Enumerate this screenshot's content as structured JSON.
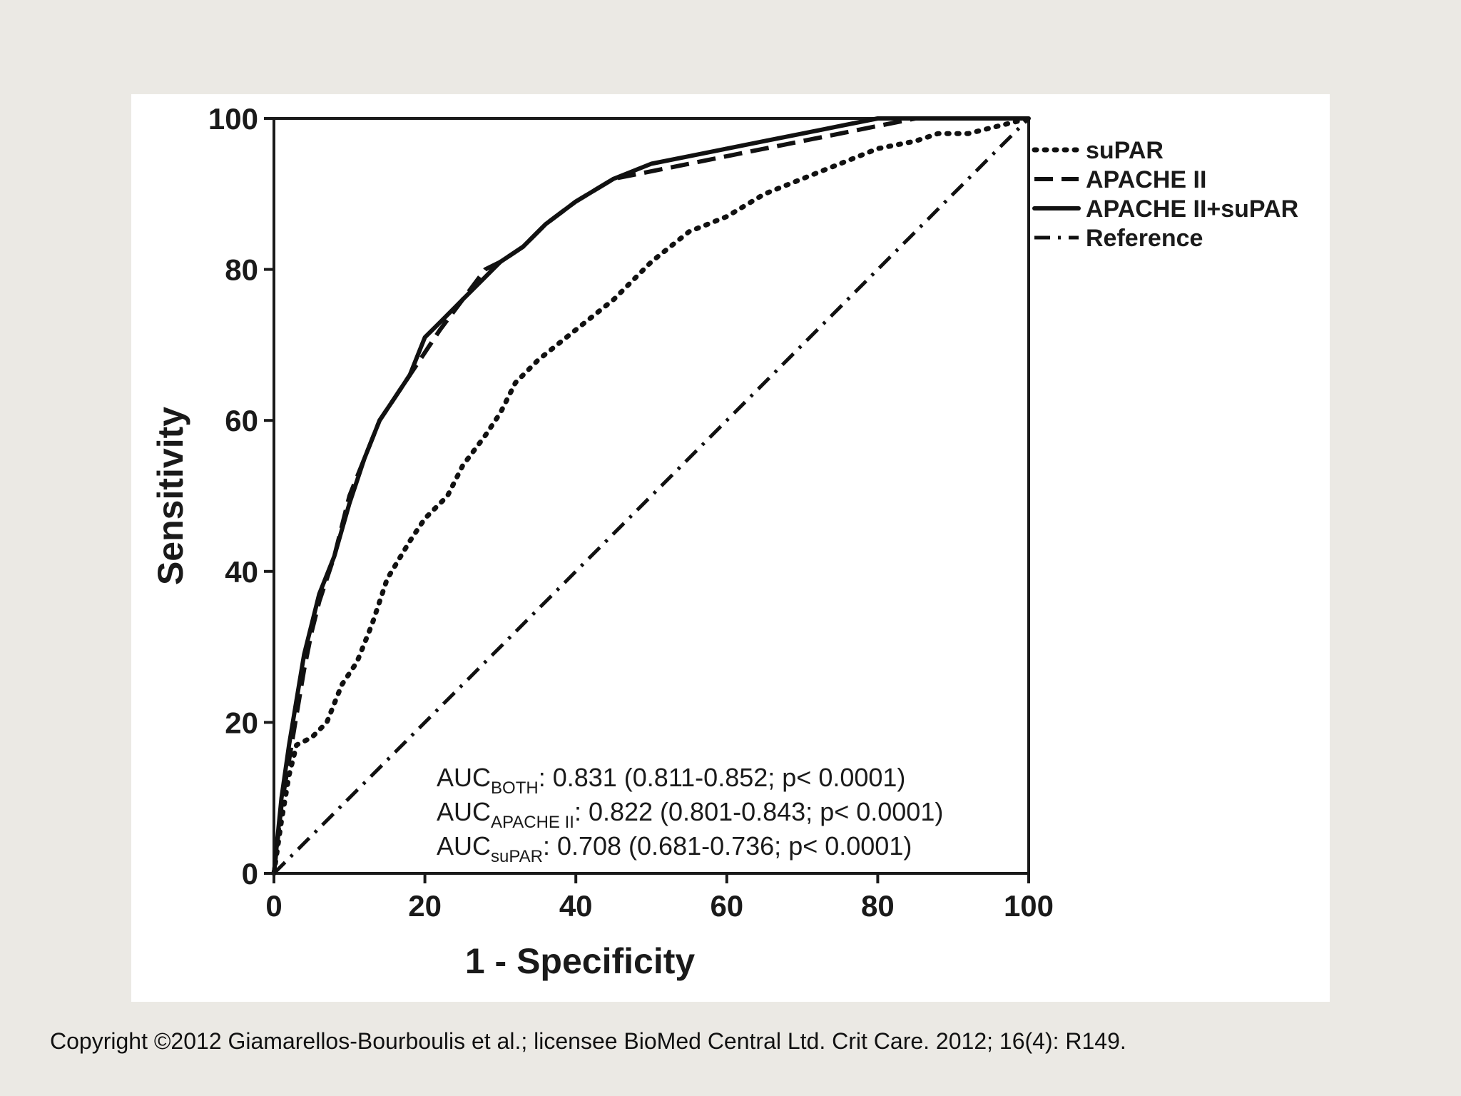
{
  "footer": {
    "copyright": "Copyright ©2012 Giamarellos-Bourboulis et al.; licensee BioMed Central Ltd. Crit Care. 2012; 16(4): R149."
  },
  "chart_data": {
    "type": "line",
    "title": "",
    "xlabel": "1 - Specificity",
    "ylabel": "Sensitivity",
    "xlim": [
      0,
      100
    ],
    "ylim": [
      0,
      100
    ],
    "xticks": [
      "0",
      "20",
      "40",
      "60",
      "80",
      "100"
    ],
    "yticks": [
      "0",
      "20",
      "40",
      "60",
      "80",
      "100"
    ],
    "grid": false,
    "legend_position": "outside-right-top",
    "series": [
      {
        "name": "suPAR",
        "dash": "dotted",
        "x": [
          0,
          1,
          2,
          3,
          5,
          7,
          9,
          11,
          13,
          15,
          18,
          20,
          23,
          25,
          28,
          30,
          32,
          35,
          40,
          45,
          50,
          55,
          60,
          65,
          70,
          75,
          80,
          85,
          88,
          92,
          96,
          100
        ],
        "y": [
          0,
          7,
          13,
          17,
          18,
          20,
          25,
          28,
          33,
          39,
          44,
          47,
          50,
          54,
          58,
          61,
          65,
          68,
          72,
          76,
          81,
          85,
          87,
          90,
          92,
          94,
          96,
          97,
          98,
          98,
          99,
          100
        ]
      },
      {
        "name": "APACHE II",
        "dash": "dashed",
        "x": [
          0,
          1,
          2,
          3,
          4,
          5,
          6,
          8,
          10,
          12,
          14,
          16,
          18,
          20,
          22,
          25,
          28,
          30,
          33,
          36,
          40,
          45,
          50,
          55,
          60,
          65,
          70,
          75,
          80,
          85,
          90,
          100
        ],
        "y": [
          0,
          9,
          15,
          21,
          27,
          32,
          36,
          42,
          50,
          55,
          60,
          63,
          66,
          69,
          72,
          76,
          80,
          81,
          83,
          86,
          89,
          92,
          93,
          94,
          95,
          96,
          97,
          98,
          99,
          100,
          100,
          100
        ]
      },
      {
        "name": "APACHE II+suPAR",
        "dash": "solid",
        "x": [
          0,
          1,
          2,
          3,
          4,
          5,
          6,
          8,
          10,
          12,
          14,
          16,
          18,
          20,
          22,
          25,
          28,
          30,
          33,
          36,
          40,
          45,
          50,
          55,
          60,
          65,
          70,
          75,
          80,
          85,
          90,
          100
        ],
        "y": [
          0,
          10,
          17,
          23,
          29,
          33,
          37,
          42,
          49,
          55,
          60,
          63,
          66,
          71,
          73,
          76,
          79,
          81,
          83,
          86,
          89,
          92,
          94,
          95,
          96,
          97,
          98,
          99,
          100,
          100,
          100,
          100
        ]
      },
      {
        "name": "Reference",
        "dash": "dash-dot",
        "x": [
          0,
          100
        ],
        "y": [
          0,
          100
        ]
      }
    ],
    "annotations": [
      {
        "label": "AUC",
        "subscript": "BOTH",
        "text": ":  0.831 (0.811-0.852; p< 0.0001)"
      },
      {
        "label": "AUC",
        "subscript": "APACHE  II",
        "text": ":  0.822 (0.801-0.843; p< 0.0001)"
      },
      {
        "label": "AUC",
        "subscript": "suPAR",
        "text": ":       0.708 (0.681-0.736; p< 0.0001)"
      }
    ]
  }
}
